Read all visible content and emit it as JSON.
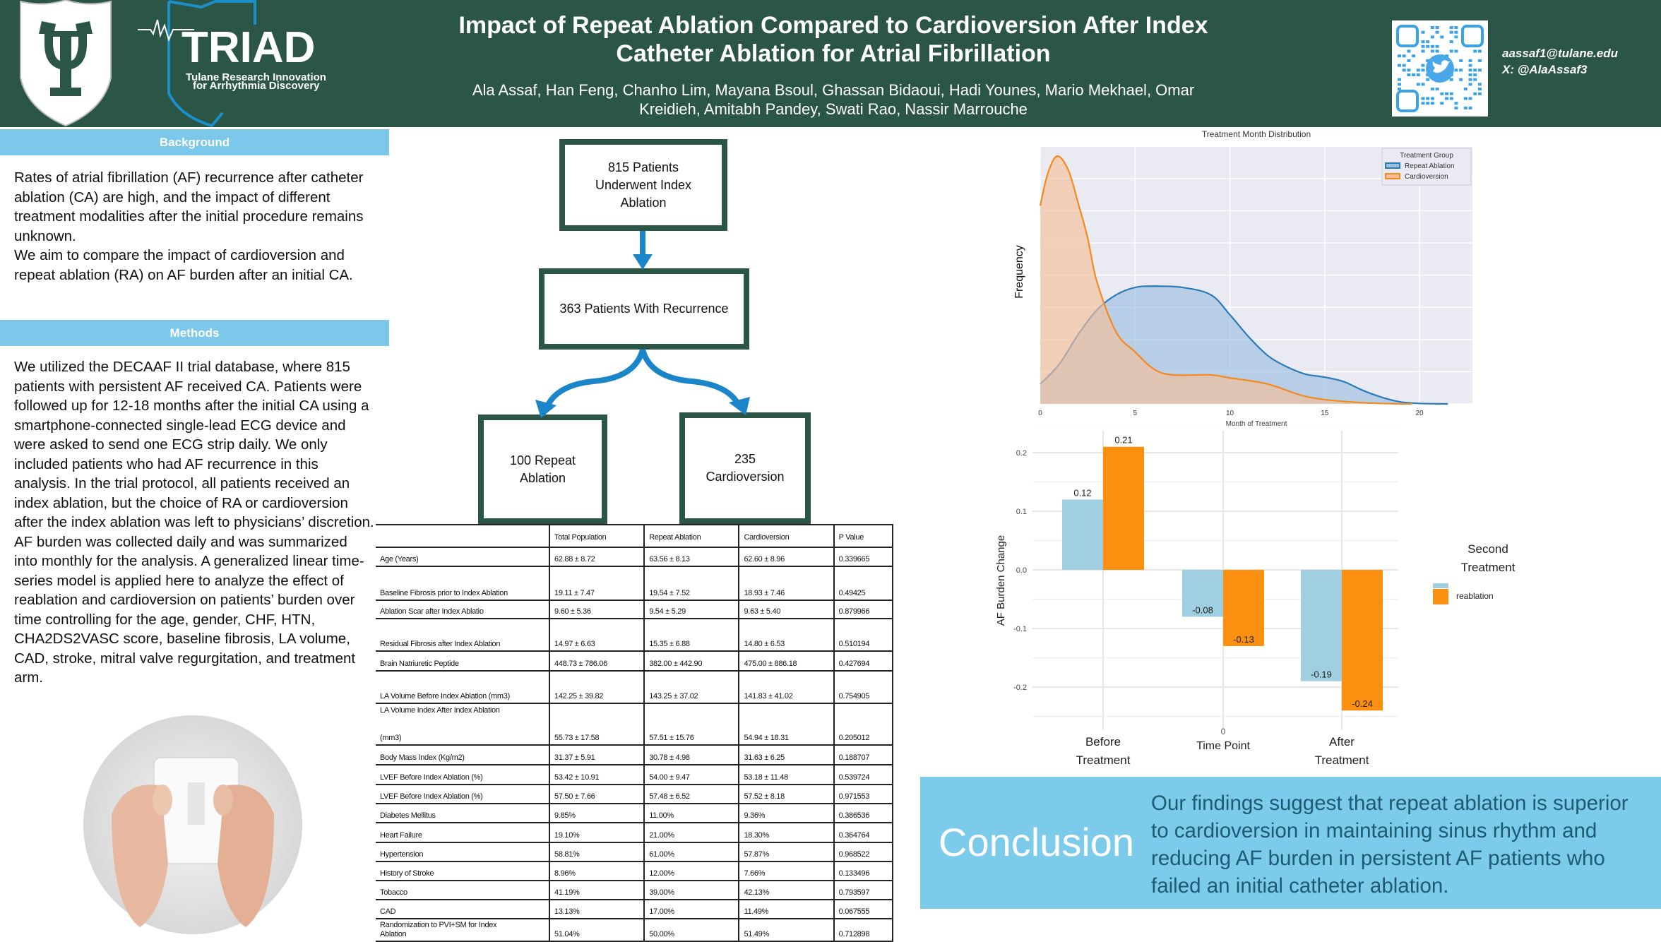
{
  "header": {
    "title_line1": "Impact of Repeat Ablation Compared to Cardioversion After Index",
    "title_line2": "Catheter Ablation for Atrial Fibrillation",
    "authors_line1": "Ala Assaf, Han Feng, Chanho Lim, Mayana Bsoul, Ghassan Bidaoui, Hadi Younes, Mario Mekhael, Omar",
    "authors_line2": "Kreidieh, Amitabh Pandey, Swati Rao, Nassir Marrouche",
    "email": "aassaf1@tulane.edu",
    "x_handle": "X: @AlaAssaf3",
    "logo_triad": "TRIAD",
    "logo_triad_sub1": "Tulane Research Innovation",
    "logo_triad_sub2": "for Arrhythmia Discovery",
    "qr_icon": "twitter-bird-icon"
  },
  "background": {
    "heading": "Background",
    "text": "Rates of atrial fibrillation (AF) recurrence after catheter ablation (CA) are high, and the impact of different treatment modalities after the initial procedure remains unknown.\nWe aim to compare the impact of cardioversion and repeat ablation (RA) on AF burden after an initial CA."
  },
  "methods": {
    "heading": "Methods",
    "text": "We utilized the DECAAF II trial database, where 815 patients with persistent AF received CA. Patients were followed up for 12-18 months after the initial CA using a smartphone-connected single-lead ECG device and were asked to send one ECG strip daily. We only included patients who had AF recurrence in this analysis. In the trial protocol, all patients received an index ablation, but the choice of RA or cardioversion after the index ablation was left to physicians’ discretion. AF burden was collected daily and was summarized into monthly for the analysis. A generalized linear time-series model is applied here to analyze the effect of reablation and cardioversion on patients’ burden over time controlling for the age, gender, CHF, HTN, CHA2DS2VASC score, baseline fibrosis, LA volume, CAD, stroke, mitral valve regurgitation, and treatment arm."
  },
  "flowchart": {
    "box1": "815 Patients\nUnderwent Index\nAblation",
    "box2": "363 Patients With Recurrence",
    "box3": "100 Repeat\nAblation",
    "box4": "235\nCardioversion",
    "arrow_color": "#1a85c8"
  },
  "table": {
    "headers": [
      "",
      "Total Population",
      "Repeat Ablation",
      "Cardioversion",
      "P Value"
    ],
    "rows": [
      [
        "Age (Years)",
        "62.88 ± 8.72",
        "63.56 ± 8.13",
        "62.60 ± 8.96",
        "0.339665"
      ],
      [
        "Baseline Fibrosis prior to Index Ablation",
        "19.11 ± 7.47",
        "19.54 ± 7.52",
        "18.93 ± 7.46",
        "0.49425"
      ],
      [
        "Ablation Scar after Index Ablatio",
        "9.60 ± 5.36",
        "9.54 ± 5.29",
        "9.63 ± 5.40",
        "0.879966"
      ],
      [
        "Residual Fibrosis after Index Ablation",
        "14.97 ± 6.63",
        "15.35 ± 6.88",
        "14.80 ± 6.53",
        "0.510194"
      ],
      [
        "Brain Natriuretic Peptide",
        "448.73 ± 786.06",
        "382.00 ± 442.90",
        "475.00 ± 886.18",
        "0.427694"
      ],
      [
        "LA Volume Before Index Ablation (mm3)",
        "142.25 ± 39.82",
        "143.25 ± 37.02",
        "141.83 ± 41.02",
        "0.754905"
      ],
      [
        "LA Volume Index After Index Ablation\n\n\n(mm3)",
        "55.73 ± 17.58",
        "57.51 ± 15.76",
        "54.94 ± 18.31",
        "0.205012"
      ],
      [
        "Body Mass Index (Kg/m2)",
        "31.37 ± 5.91",
        "30.78 ± 4.98",
        "31.63 ± 6.25",
        "0.188707"
      ],
      [
        "LVEF Before Index Ablation (%)",
        "53.42 ± 10.91",
        "54.00 ± 9.47",
        "53.18 ± 11.48",
        "0.539724"
      ],
      [
        "LVEF Before Index Ablation (%)",
        "57.50 ± 7.66",
        "57.48 ± 6.52",
        "57.52 ± 8.18",
        "0.971553"
      ],
      [
        "Diabetes Mellitus",
        "9.85%",
        "11.00%",
        "9.36%",
        "0.386536"
      ],
      [
        "Heart Failure",
        "19.10%",
        "21.00%",
        "18.30%",
        "0.364764"
      ],
      [
        "Hypertension",
        "58.81%",
        "61.00%",
        "57.87%",
        "0.968522"
      ],
      [
        "History of Stroke",
        "8.96%",
        "12.00%",
        "7.66%",
        "0.133496"
      ],
      [
        "Tobacco",
        "41.19%",
        "39.00%",
        "42.13%",
        "0.793597"
      ],
      [
        "CAD",
        "13.13%",
        "17.00%",
        "11.49%",
        "0.067555"
      ],
      [
        "Randomization to PVI+SM for Index\nAblation",
        "51.04%",
        "50.00%",
        "51.49%",
        "0.712898"
      ]
    ]
  },
  "conclusion": {
    "heading": "Conclusion",
    "text": "Our findings suggest that repeat ablation is superior to cardioversion in maintaining sinus rhythm and reducing AF burden in persistent AF patients who failed an initial catheter ablation."
  },
  "chart_data": [
    {
      "type": "area",
      "title": "Treatment Month Distribution",
      "xlabel": "Month of Treatment",
      "ylabel": "Frequency",
      "xlim": [
        0,
        23
      ],
      "xticks": [
        0,
        5,
        10,
        15,
        20
      ],
      "grid": true,
      "legend_title": "Treatment Group",
      "legend_position": "top-right",
      "series": [
        {
          "name": "Repeat Ablation",
          "color": "#2b7bba",
          "x": [
            0,
            1,
            2,
            3,
            4,
            5,
            6,
            7.5,
            9,
            10,
            11,
            12,
            13,
            14,
            15,
            16,
            17,
            18,
            19,
            20,
            21.5
          ],
          "y": [
            0.08,
            0.16,
            0.28,
            0.38,
            0.44,
            0.47,
            0.475,
            0.47,
            0.44,
            0.36,
            0.27,
            0.195,
            0.15,
            0.12,
            0.108,
            0.09,
            0.055,
            0.027,
            0.008,
            0.002,
            0
          ]
        },
        {
          "name": "Cardioversion",
          "color": "#f28a1e",
          "x": [
            0,
            0.4,
            0.9,
            1.5,
            2,
            2.5,
            3,
            4,
            5,
            6,
            7,
            9,
            10,
            12,
            14,
            16,
            18,
            19.6
          ],
          "y": [
            0.8,
            0.93,
            1.0,
            0.94,
            0.81,
            0.67,
            0.49,
            0.29,
            0.21,
            0.14,
            0.117,
            0.117,
            0.105,
            0.08,
            0.03,
            0.01,
            0.002,
            0
          ]
        }
      ]
    },
    {
      "type": "bar",
      "xlabel": "Time Point",
      "xlabel_extra": "0",
      "ylabel": "AF Burden Change",
      "categories": [
        "Before\nTreatment",
        "",
        "After\nTreatment"
      ],
      "ylim": [
        -0.25,
        0.25
      ],
      "yticks": [
        -0.2,
        -0.1,
        0.0,
        0.1,
        0.2
      ],
      "grid": true,
      "legend_title": "Second\nTreatment",
      "legend_position": "right",
      "series": [
        {
          "name": "",
          "color": "#9fcfe0",
          "values": [
            0.12,
            -0.08,
            -0.19
          ],
          "labels": [
            "0.12",
            "-0.08",
            "-0.19"
          ]
        },
        {
          "name": "reablation",
          "color": "#fb9010",
          "values": [
            0.21,
            -0.13,
            -0.24
          ],
          "labels": [
            "0.21",
            "-0.13",
            "-0.24"
          ]
        }
      ]
    }
  ]
}
